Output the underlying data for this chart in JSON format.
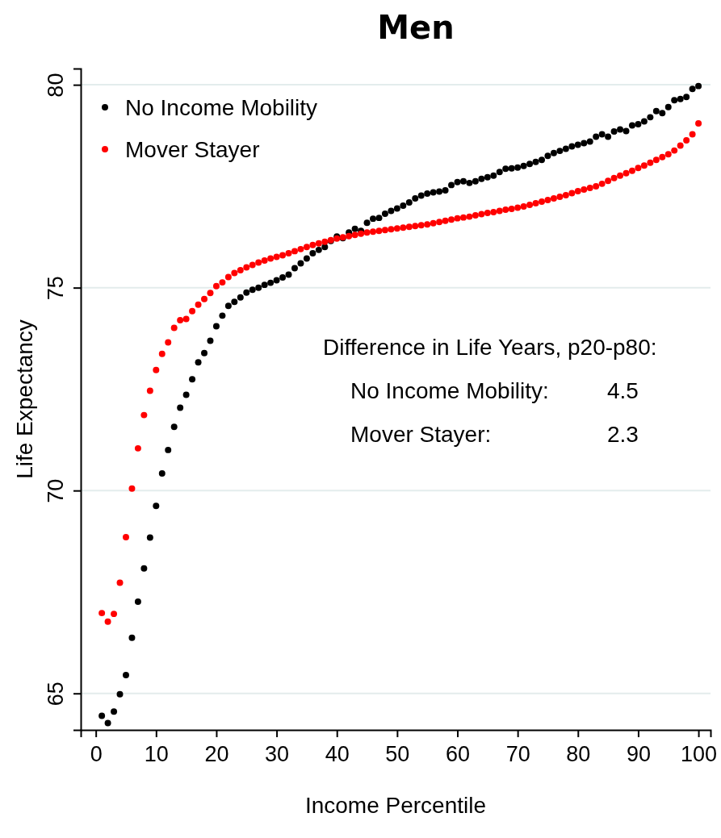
{
  "chart_data": {
    "type": "scatter",
    "title": "Men",
    "xlabel": "Income Percentile",
    "ylabel": "Life Expectancy",
    "x": [
      1,
      2,
      3,
      4,
      5,
      6,
      7,
      8,
      9,
      10,
      11,
      12,
      13,
      14,
      15,
      16,
      17,
      18,
      19,
      20,
      21,
      22,
      23,
      24,
      25,
      26,
      27,
      28,
      29,
      30,
      31,
      32,
      33,
      34,
      35,
      36,
      37,
      38,
      39,
      40,
      41,
      42,
      43,
      44,
      45,
      46,
      47,
      48,
      49,
      50,
      51,
      52,
      53,
      54,
      55,
      56,
      57,
      58,
      59,
      60,
      61,
      62,
      63,
      64,
      65,
      66,
      67,
      68,
      69,
      70,
      71,
      72,
      73,
      74,
      75,
      76,
      77,
      78,
      79,
      80,
      81,
      82,
      83,
      84,
      85,
      86,
      87,
      88,
      89,
      90,
      91,
      92,
      93,
      94,
      95,
      96,
      97,
      98,
      99,
      100
    ],
    "series": [
      {
        "name": "No Income Mobility",
        "color": "#000000",
        "values": [
          64.45,
          64.27,
          64.55,
          64.98,
          65.45,
          66.37,
          67.26,
          68.08,
          68.84,
          69.62,
          70.42,
          71.0,
          71.57,
          72.04,
          72.36,
          72.74,
          73.16,
          73.39,
          73.69,
          74.05,
          74.31,
          74.55,
          74.65,
          74.76,
          74.88,
          74.95,
          75.0,
          75.07,
          75.12,
          75.18,
          75.25,
          75.32,
          75.48,
          75.6,
          75.72,
          75.85,
          75.93,
          76.0,
          76.15,
          76.26,
          76.22,
          76.36,
          76.45,
          76.4,
          76.6,
          76.7,
          76.72,
          76.82,
          76.89,
          76.95,
          77.02,
          77.1,
          77.2,
          77.27,
          77.32,
          77.35,
          77.37,
          77.4,
          77.53,
          77.6,
          77.62,
          77.58,
          77.62,
          77.68,
          77.72,
          77.76,
          77.85,
          77.93,
          77.94,
          77.96,
          78.0,
          78.05,
          78.1,
          78.15,
          78.25,
          78.32,
          78.37,
          78.42,
          78.48,
          78.52,
          78.56,
          78.6,
          78.72,
          78.78,
          78.72,
          78.85,
          78.9,
          78.86,
          79.0,
          79.03,
          79.1,
          79.2,
          79.35,
          79.3,
          79.45,
          79.62,
          79.65,
          79.7,
          79.9,
          79.97
        ]
      },
      {
        "name": "Mover Stayer",
        "color": "#ff0000",
        "values": [
          66.98,
          66.77,
          66.96,
          67.73,
          68.85,
          70.05,
          71.04,
          71.86,
          72.46,
          72.97,
          73.37,
          73.65,
          74.01,
          74.2,
          74.23,
          74.42,
          74.58,
          74.72,
          74.87,
          75.04,
          75.13,
          75.26,
          75.36,
          75.43,
          75.5,
          75.56,
          75.62,
          75.67,
          75.72,
          75.76,
          75.8,
          75.85,
          75.9,
          75.95,
          76.0,
          76.05,
          76.09,
          76.13,
          76.17,
          76.21,
          76.24,
          76.27,
          76.3,
          76.33,
          76.36,
          76.38,
          76.4,
          76.42,
          76.44,
          76.46,
          76.48,
          76.5,
          76.52,
          76.54,
          76.56,
          76.59,
          76.62,
          76.65,
          76.68,
          76.71,
          76.73,
          76.75,
          76.78,
          76.81,
          76.84,
          76.86,
          76.89,
          76.92,
          76.94,
          76.97,
          77.0,
          77.04,
          77.08,
          77.12,
          77.16,
          77.2,
          77.24,
          77.28,
          77.33,
          77.38,
          77.42,
          77.46,
          77.5,
          77.56,
          77.63,
          77.7,
          77.76,
          77.82,
          77.88,
          77.95,
          78.01,
          78.08,
          78.15,
          78.22,
          78.29,
          78.38,
          78.5,
          78.63,
          78.78,
          79.05
        ]
      }
    ],
    "xlim": [
      -2.5,
      102
    ],
    "xticks": [
      0,
      10,
      20,
      30,
      40,
      50,
      60,
      70,
      80,
      90,
      100
    ],
    "ylim": [
      64.1,
      80.4
    ],
    "yticks": [
      65,
      70,
      75,
      80
    ],
    "grid": "y",
    "legend": "top left",
    "marker": "circle",
    "annotations": [
      "Difference in Life Years, p20-p80:",
      "No Income Mobility:\t4.5",
      "Mover Stayer:\t2.3"
    ]
  }
}
